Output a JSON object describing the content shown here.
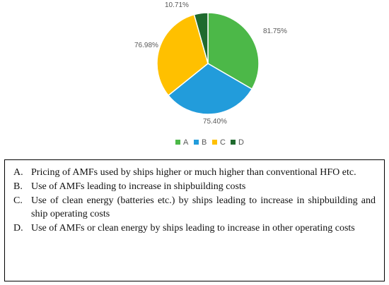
{
  "chart_data": {
    "type": "pie",
    "slices": [
      {
        "category": "A",
        "label": "81.75%",
        "value": 81.75,
        "color": "#4CB848"
      },
      {
        "category": "B",
        "label": "75.40%",
        "value": 75.4,
        "color": "#229CDB"
      },
      {
        "category": "C",
        "label": "76.98%",
        "value": 76.98,
        "color": "#FFC000"
      },
      {
        "category": "D",
        "label": "10.71%",
        "value": 10.71,
        "color": "#1F6A2E"
      }
    ],
    "legend": [
      "A",
      "B",
      "C",
      "D"
    ],
    "legend_position": "bottom"
  },
  "notes": [
    {
      "letter": "A.",
      "text": "Pricing of AMFs used by ships higher or much higher than conventional HFO etc."
    },
    {
      "letter": "B.",
      "text": "Use of AMFs leading to increase in shipbuilding costs"
    },
    {
      "letter": "C.",
      "text": "Use of clean energy (batteries etc.) by ships leading to increase in shipbuilding and ship operating costs"
    },
    {
      "letter": "D.",
      "text": "Use of AMFs or clean energy by ships leading to increase in other operating costs"
    }
  ]
}
